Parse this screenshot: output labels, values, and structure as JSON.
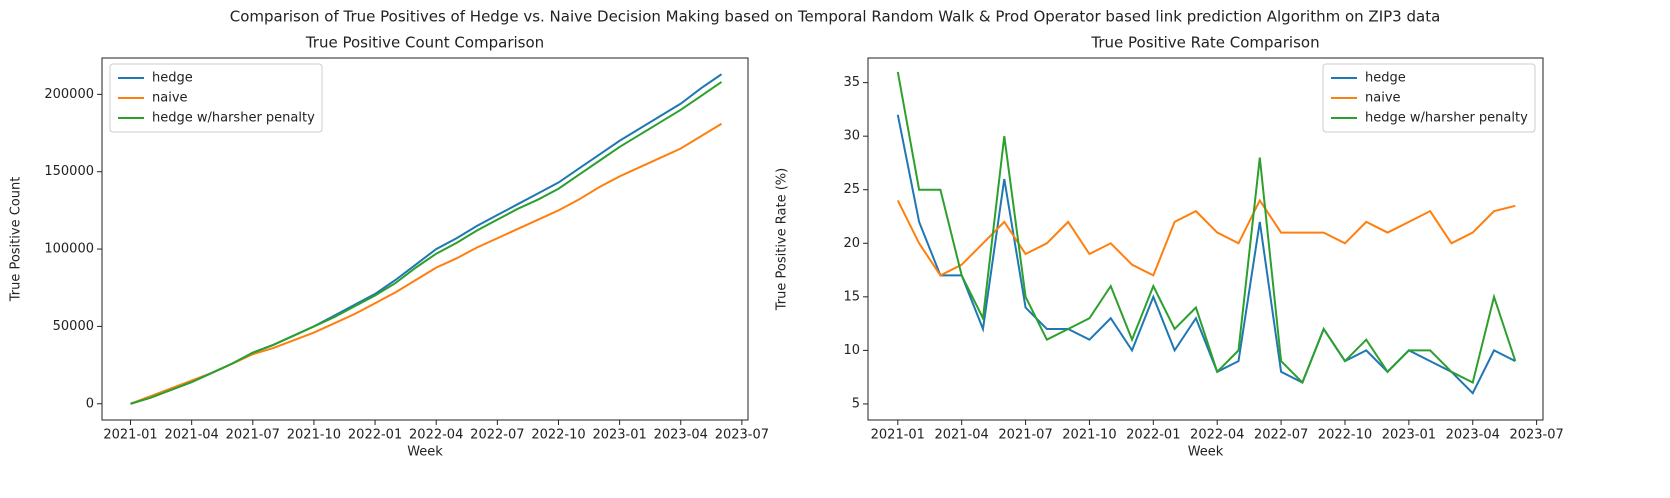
{
  "title": "Comparison of True Positives of Hedge vs. Naive Decision Making based on Temporal Random Walk & Prod Operator based link prediction Algorithm on ZIP3 data",
  "chart_data": [
    {
      "type": "line",
      "title": "True Positive Count Comparison",
      "x_label": "Week",
      "y_label": "True Positive Count",
      "legend": "upper left",
      "x": [
        0,
        1,
        2,
        3,
        4,
        5,
        6,
        7,
        8,
        9,
        10,
        11,
        12,
        13,
        14,
        15,
        16,
        17,
        18,
        19,
        20,
        21,
        22,
        23,
        24,
        25,
        26,
        27,
        28,
        29
      ],
      "xlim": [
        -1.4,
        30.3
      ],
      "xticks": [
        {
          "value": 0,
          "label": "2021-01"
        },
        {
          "value": 3,
          "label": "2021-04"
        },
        {
          "value": 6,
          "label": "2021-07"
        },
        {
          "value": 9,
          "label": "2021-10"
        },
        {
          "value": 12,
          "label": "2022-01"
        },
        {
          "value": 15,
          "label": "2022-04"
        },
        {
          "value": 18,
          "label": "2022-07"
        },
        {
          "value": 21,
          "label": "2022-10"
        },
        {
          "value": 24,
          "label": "2023-01"
        },
        {
          "value": 27,
          "label": "2023-04"
        },
        {
          "value": 30,
          "label": "2023-07"
        }
      ],
      "ylim": [
        -10500,
        223500
      ],
      "yticks": [
        0,
        50000,
        100000,
        150000,
        200000
      ],
      "series": [
        {
          "name": "hedge",
          "color": "#1f77b4",
          "values": [
            0,
            4000,
            9000,
            14000,
            20000,
            26000,
            33000,
            38000,
            44000,
            50000,
            57000,
            64000,
            71000,
            80000,
            90000,
            100000,
            107000,
            115000,
            122000,
            129000,
            136000,
            143000,
            152000,
            161000,
            170000,
            178000,
            186000,
            194000,
            204000,
            213000
          ]
        },
        {
          "name": "naive",
          "color": "#ff7f0e",
          "values": [
            0,
            5000,
            10000,
            15000,
            20000,
            26000,
            32000,
            36000,
            41000,
            46000,
            52000,
            58000,
            65000,
            72000,
            80000,
            88000,
            94000,
            101000,
            107000,
            113000,
            119000,
            125000,
            132000,
            140000,
            147000,
            153000,
            159000,
            165000,
            173000,
            181000
          ]
        },
        {
          "name": "hedge w/harsher penalty",
          "color": "#2ca02c",
          "values": [
            0,
            4000,
            9000,
            14000,
            20000,
            26000,
            33000,
            38000,
            44000,
            50000,
            56000,
            63000,
            70000,
            78000,
            88000,
            97000,
            104000,
            112000,
            119000,
            126000,
            132000,
            139000,
            148000,
            157000,
            166000,
            174000,
            182000,
            190000,
            199000,
            208000
          ]
        }
      ]
    },
    {
      "type": "line",
      "title": "True Positive Rate Comparison",
      "x_label": "Week",
      "y_label": "True Positive Rate (%)",
      "legend": "upper right",
      "x": [
        0,
        1,
        2,
        3,
        4,
        5,
        6,
        7,
        8,
        9,
        10,
        11,
        12,
        13,
        14,
        15,
        16,
        17,
        18,
        19,
        20,
        21,
        22,
        23,
        24,
        25,
        26,
        27,
        28,
        29
      ],
      "xlim": [
        -1.4,
        30.3
      ],
      "xticks": [
        {
          "value": 0,
          "label": "2021-01"
        },
        {
          "value": 3,
          "label": "2021-04"
        },
        {
          "value": 6,
          "label": "2021-07"
        },
        {
          "value": 9,
          "label": "2021-10"
        },
        {
          "value": 12,
          "label": "2022-01"
        },
        {
          "value": 15,
          "label": "2022-04"
        },
        {
          "value": 18,
          "label": "2022-07"
        },
        {
          "value": 21,
          "label": "2022-10"
        },
        {
          "value": 24,
          "label": "2023-01"
        },
        {
          "value": 27,
          "label": "2023-04"
        },
        {
          "value": 30,
          "label": "2023-07"
        }
      ],
      "ylim": [
        3.5,
        37.3
      ],
      "yticks": [
        5,
        10,
        15,
        20,
        25,
        30,
        35
      ],
      "series": [
        {
          "name": "hedge",
          "color": "#1f77b4",
          "values": [
            32,
            22,
            17,
            17,
            12,
            26,
            14,
            12,
            12,
            11,
            13,
            10,
            15,
            10,
            13,
            8,
            9,
            22,
            8,
            7,
            12,
            9,
            10,
            8,
            10,
            9,
            8,
            6,
            10,
            9
          ]
        },
        {
          "name": "naive",
          "color": "#ff7f0e",
          "values": [
            24,
            20,
            17,
            18,
            20,
            22,
            19,
            20,
            22,
            19,
            20,
            18,
            17,
            22,
            23,
            21,
            20,
            24,
            21,
            21,
            21,
            20,
            22,
            21,
            22,
            23,
            20,
            21,
            23,
            23.5
          ]
        },
        {
          "name": "hedge w/harsher penalty",
          "color": "#2ca02c",
          "values": [
            36,
            25,
            25,
            17,
            13,
            30,
            15,
            11,
            12,
            13,
            16,
            11,
            16,
            12,
            14,
            8,
            10,
            28,
            9,
            7,
            12,
            9,
            11,
            8,
            10,
            10,
            8,
            7,
            15,
            9
          ]
        }
      ]
    }
  ]
}
